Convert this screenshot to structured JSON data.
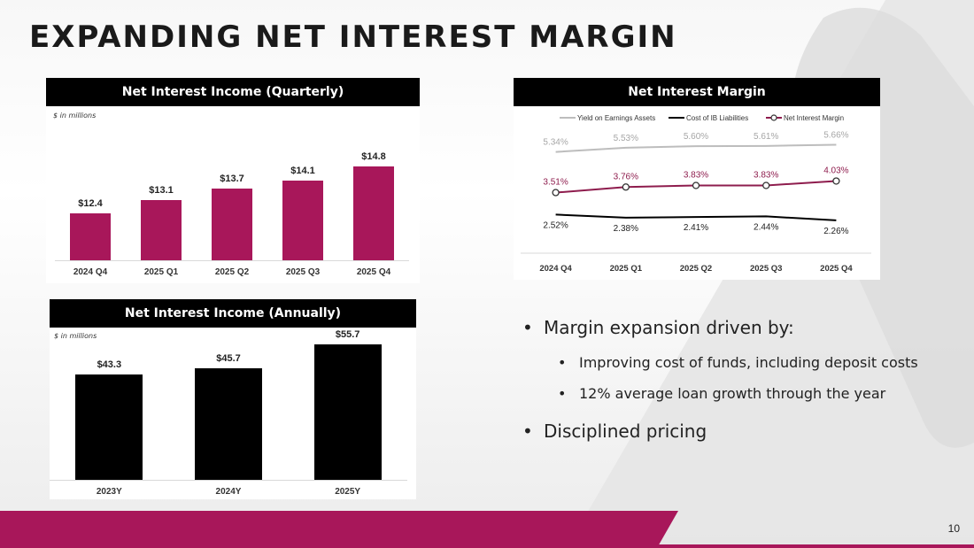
{
  "page": {
    "title": "EXPANDING NET INTEREST MARGIN",
    "page_number": "10"
  },
  "colors": {
    "accent": "#a8175a",
    "black": "#000000",
    "gray_line": "#bdbdbd"
  },
  "bullets": [
    {
      "level": 1,
      "text": "Margin expansion driven by:"
    },
    {
      "level": 2,
      "text": "Improving cost of funds, including deposit costs"
    },
    {
      "level": 2,
      "text": "12% average loan growth through the year"
    },
    {
      "level": 1,
      "text": "Disciplined pricing"
    }
  ],
  "chart_data": [
    {
      "type": "bar",
      "title": "Net Interest Income (Quarterly)",
      "units_note": "$ in millions",
      "categories": [
        "2024 Q4",
        "2025 Q1",
        "2025 Q2",
        "2025 Q3",
        "2025 Q4"
      ],
      "values": [
        12.4,
        13.1,
        13.7,
        14.1,
        14.8
      ],
      "value_labels": [
        "$12.4",
        "$13.1",
        "$13.7",
        "$14.1",
        "$14.8"
      ],
      "color": "#a8175a",
      "ylim": [
        10,
        15
      ]
    },
    {
      "type": "bar",
      "title": "Net Interest Income (Annually)",
      "units_note": "$ in millions",
      "categories": [
        "2023Y",
        "2024Y",
        "2025Y"
      ],
      "values": [
        43.3,
        45.7,
        55.7
      ],
      "value_labels": [
        "$43.3",
        "$45.7",
        "$55.7"
      ],
      "color": "#000000",
      "ylim": [
        0,
        60
      ]
    },
    {
      "type": "line",
      "title": "Net Interest Margin",
      "categories": [
        "2024 Q4",
        "2025 Q1",
        "2025 Q2",
        "2025 Q3",
        "2025 Q4"
      ],
      "series": [
        {
          "name": "Yield on Earnings Assets",
          "values": [
            5.34,
            5.53,
            5.6,
            5.61,
            5.66
          ],
          "labels": [
            "5.34%",
            "5.53%",
            "5.60%",
            "5.61%",
            "5.66%"
          ],
          "color": "#bdbdbd"
        },
        {
          "name": "Cost of IB Liabilities",
          "values": [
            2.52,
            2.38,
            2.41,
            2.44,
            2.26
          ],
          "labels": [
            "2.52%",
            "2.38%",
            "2.41%",
            "2.44%",
            "2.26%"
          ],
          "color": "#000000"
        },
        {
          "name": "Net Interest Margin",
          "values": [
            3.51,
            3.76,
            3.83,
            3.83,
            4.03
          ],
          "labels": [
            "3.51%",
            "3.76%",
            "3.83%",
            "3.83%",
            "4.03%"
          ],
          "color": "#8e1c4d"
        }
      ]
    }
  ]
}
